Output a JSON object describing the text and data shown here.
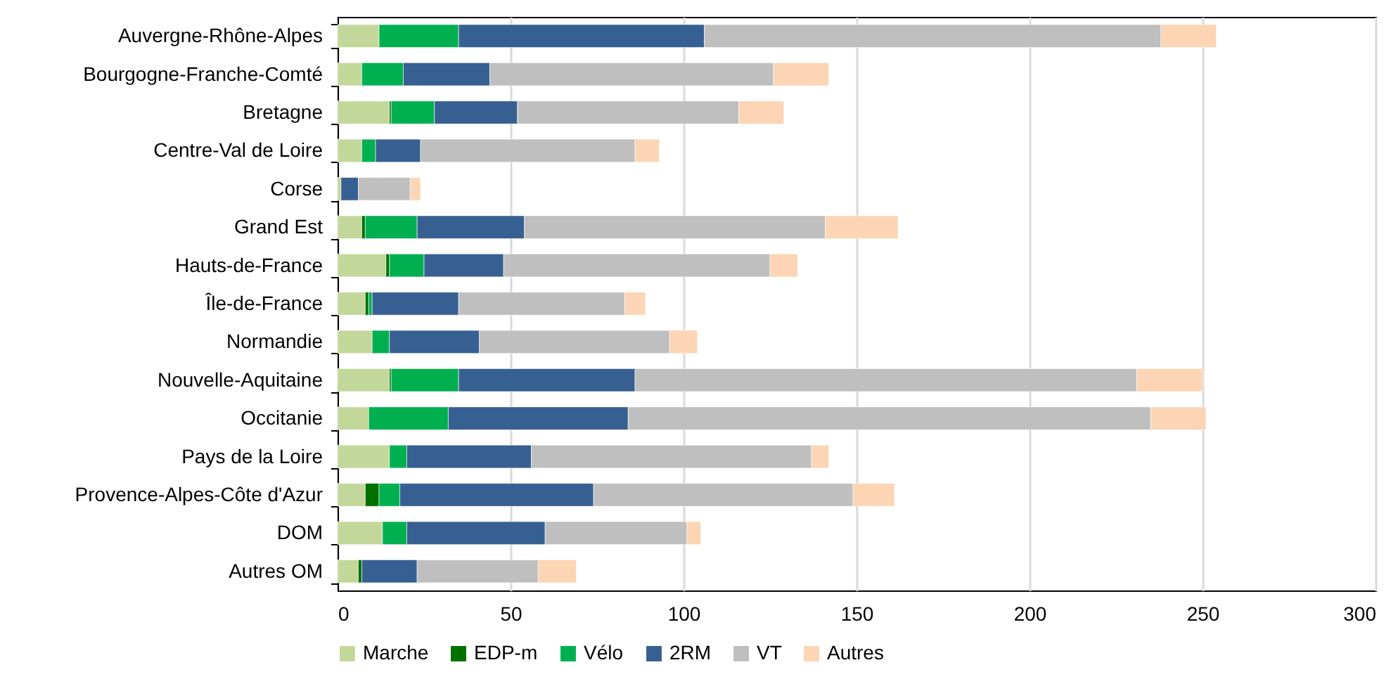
{
  "chart_data": {
    "type": "bar",
    "orientation": "horizontal",
    "stacked": true,
    "categories": [
      "Auvergne-Rhône-Alpes",
      "Bourgogne-Franche-Comté",
      "Bretagne",
      "Centre-Val de Loire",
      "Corse",
      "Grand Est",
      "Hauts-de-France",
      "Île-de-France",
      "Normandie",
      "Nouvelle-Aquitaine",
      "Occitanie",
      "Pays de la Loire",
      "Provence-Alpes-Côte d'Azur",
      "DOM",
      "Autres OM"
    ],
    "series": [
      {
        "name": "Marche",
        "color": "#c4d79b",
        "values": [
          12,
          7,
          15,
          7,
          1,
          7,
          14,
          8,
          10,
          15,
          9,
          15,
          8,
          13,
          6
        ]
      },
      {
        "name": "EDP-m",
        "color": "#007000",
        "values": [
          null,
          null,
          0.5,
          null,
          null,
          1,
          1,
          1,
          null,
          0.5,
          null,
          null,
          4,
          null,
          1
        ]
      },
      {
        "name": "Vélo",
        "color": "#00b050",
        "values": [
          23,
          12,
          12.5,
          4,
          null,
          15,
          10,
          1,
          5,
          19.5,
          23,
          5,
          6,
          7,
          null
        ]
      },
      {
        "name": "2RM",
        "color": "#376092",
        "values": [
          71,
          25,
          24,
          13,
          5,
          31,
          23,
          25,
          26,
          51,
          52,
          36,
          56,
          40,
          16
        ]
      },
      {
        "name": "VT",
        "color": "#bfbfbf",
        "values": [
          132,
          82,
          64,
          62,
          15,
          87,
          77,
          48,
          55,
          145,
          151,
          81,
          75,
          41,
          35
        ]
      },
      {
        "name": "Autres",
        "color": "#fcd5b4",
        "values": [
          16,
          16,
          13,
          7,
          3,
          21,
          8,
          6,
          8,
          19,
          16,
          5,
          12,
          4,
          11
        ]
      }
    ],
    "xlim": [
      0,
      300
    ],
    "xticks": [
      0,
      50,
      100,
      150,
      200,
      250,
      300
    ],
    "grid": "x",
    "legend": "bottom"
  }
}
